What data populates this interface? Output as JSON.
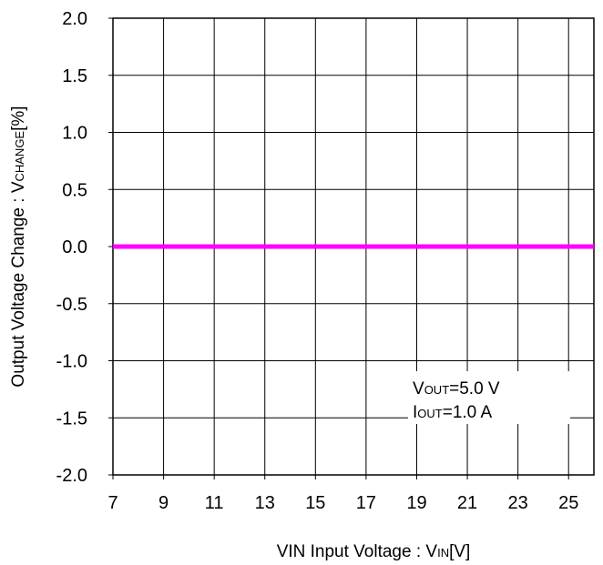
{
  "chart_data": {
    "type": "line",
    "title": "",
    "xlabel": {
      "main": "VIN Input Voltage : V",
      "sub": "IN",
      "suffix": "[V]"
    },
    "ylabel": {
      "main": "Output Voltage Change : V",
      "sub": "CHANGE",
      "suffix": "[%]"
    },
    "xlim": [
      7,
      26
    ],
    "ylim": [
      -2.0,
      2.0
    ],
    "x_ticks": [
      "7",
      "9",
      "11",
      "13",
      "15",
      "17",
      "19",
      "21",
      "23",
      "25"
    ],
    "y_ticks": [
      "2.0",
      "1.5",
      "1.0",
      "0.5",
      "0.0",
      "-0.5",
      "-1.0",
      "-1.5",
      "-2.0"
    ],
    "grid": true,
    "series": [
      {
        "color": "#ff00ff",
        "x": [
          7,
          26
        ],
        "y": [
          0.0,
          0.0
        ]
      }
    ],
    "annotations": [
      {
        "main": "V",
        "sub": "OUT",
        "rest": "=5.0 V"
      },
      {
        "main": "I",
        "sub": "OUT",
        "rest": "=1.0 A"
      }
    ]
  }
}
